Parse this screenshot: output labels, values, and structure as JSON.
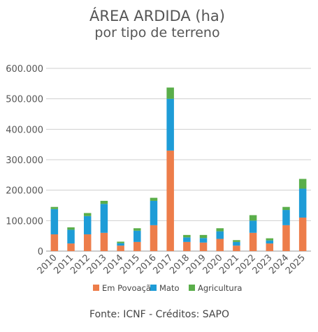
{
  "chart_data": {
    "type": "bar",
    "stacked": true,
    "title": "ÁREA ARDIDA (ha)",
    "subtitle": "por tipo de terreno",
    "categories": [
      "2010",
      "2011",
      "2012",
      "2013",
      "2014",
      "2015",
      "2016",
      "2017",
      "2018",
      "2019",
      "2020",
      "2021",
      "2022",
      "2023",
      "2024",
      "2025"
    ],
    "series": [
      {
        "name": "Em Povoação",
        "color": "#ED7D4A",
        "values": [
          55000,
          25000,
          55000,
          60000,
          18000,
          30000,
          85000,
          330000,
          30000,
          28000,
          40000,
          18000,
          60000,
          25000,
          85000,
          110000
        ]
      },
      {
        "name": "Mato",
        "color": "#1E9CD7",
        "values": [
          83000,
          45000,
          60000,
          95000,
          8000,
          37000,
          80000,
          170000,
          15000,
          15000,
          25000,
          12000,
          40000,
          10000,
          50000,
          95000
        ]
      },
      {
        "name": "Agricultura",
        "color": "#5AAE4A",
        "values": [
          7000,
          8000,
          10000,
          10000,
          5000,
          8000,
          10000,
          37000,
          8000,
          10000,
          10000,
          6000,
          18000,
          7000,
          10000,
          32000
        ]
      }
    ],
    "yticks": [
      "0",
      "100.000",
      "200.000",
      "300.000",
      "400.000",
      "500.000",
      "600.000"
    ],
    "ylim": [
      0,
      600000
    ],
    "grid": true,
    "legend_position": "bottom"
  },
  "footer": {
    "source": "Fonte: ICNF - Créditos: SAPO"
  }
}
